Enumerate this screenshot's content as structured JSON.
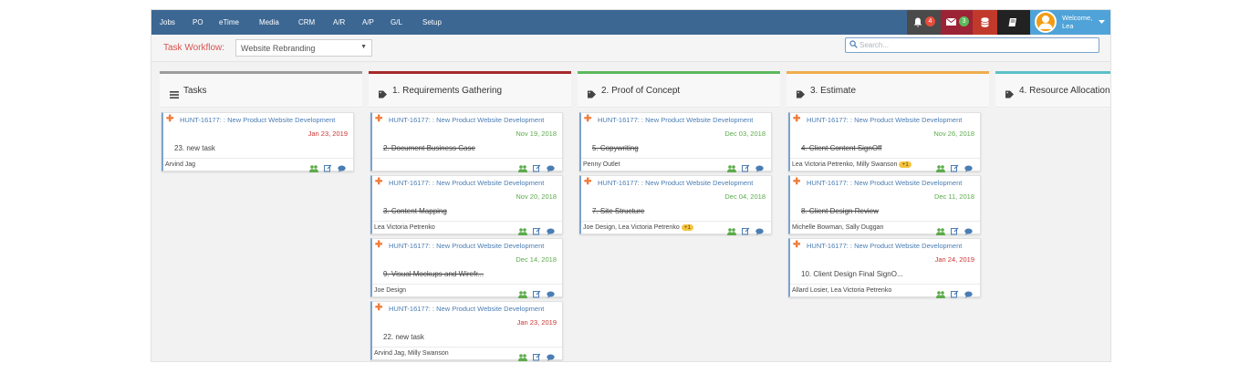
{
  "nav": {
    "items": [
      "Jobs",
      "PO",
      "eTime",
      "Media",
      "CRM",
      "A/R",
      "A/P",
      "G/L",
      "Setup"
    ],
    "notifications_count": "4",
    "messages_count": "3",
    "welcome_line1": "Welcome,",
    "welcome_line2": "Lea",
    "colors": {
      "bar": "#3c6793",
      "notif_bg": "#4a4a4a",
      "msg_bg": "#9b2335",
      "db_bg": "#c0392b",
      "book_bg": "#222222",
      "user_bg": "#4fa3d8"
    }
  },
  "workflow": {
    "label": "Task Workflow:",
    "selected": "Website Rebranding",
    "search_placeholder": "Search..."
  },
  "columns": [
    {
      "title": "Tasks",
      "icon": "list-icon",
      "color": "#9c9c9c",
      "cards": [
        {
          "job": "HUNT-16177: : New Product Website Development",
          "date": "Jan 23, 2019",
          "date_status": "overdue",
          "task": "23. new task",
          "done": false,
          "assignees": "Arvind Jag",
          "extra": ""
        }
      ]
    },
    {
      "title": "1. Requirements Gathering",
      "icon": "tag-icon",
      "color": "#a52a2a",
      "cards": [
        {
          "job": "HUNT-16177: : New Product Website Development",
          "date": "Nov 19, 2018",
          "date_status": "ok",
          "task": "2. Document Business Case",
          "done": true,
          "assignees": "",
          "extra": ""
        },
        {
          "job": "HUNT-16177: : New Product Website Development",
          "date": "Nov 20, 2018",
          "date_status": "ok",
          "task": "3. Content Mapping",
          "done": true,
          "assignees": "Lea Victoria Petrenko",
          "extra": ""
        },
        {
          "job": "HUNT-16177: : New Product Website Development",
          "date": "Dec 14, 2018",
          "date_status": "ok",
          "task": "9. Visual Mockups and Wirefr...",
          "done": true,
          "assignees": "Joe Design",
          "extra": ""
        },
        {
          "job": "HUNT-16177: : New Product Website Development",
          "date": "Jan 23, 2019",
          "date_status": "overdue",
          "task": "22. new task",
          "done": false,
          "assignees": "Arvind Jag, Milly Swanson",
          "extra": ""
        }
      ]
    },
    {
      "title": "2. Proof of Concept",
      "icon": "tag-icon",
      "color": "#5cb85c",
      "cards": [
        {
          "job": "HUNT-16177: : New Product Website Development",
          "date": "Dec 03, 2018",
          "date_status": "ok",
          "task": "5. Copywriting",
          "done": true,
          "assignees": "Penny Outlet",
          "extra": ""
        },
        {
          "job": "HUNT-16177: : New Product Website Development",
          "date": "Dec 04, 2018",
          "date_status": "ok",
          "task": "7. Site Structure",
          "done": true,
          "assignees": "Joe Design, Lea Victoria Petrenko",
          "extra": "+1"
        }
      ]
    },
    {
      "title": "3. Estimate",
      "icon": "tag-icon",
      "color": "#f0ad4e",
      "cards": [
        {
          "job": "HUNT-16177: : New Product Website Development",
          "date": "Nov 26, 2018",
          "date_status": "ok",
          "task": "4. Client Content SignOff",
          "done": true,
          "assignees": "Lea Victoria Petrenko, Milly Swanson",
          "extra": "+1"
        },
        {
          "job": "HUNT-16177: : New Product Website Development",
          "date": "Dec 11, 2018",
          "date_status": "ok",
          "task": "8. Client Design Review",
          "done": true,
          "assignees": "Michelle Bowman, Sally Duggan",
          "extra": ""
        },
        {
          "job": "HUNT-16177: : New Product Website Development",
          "date": "Jan 24, 2019",
          "date_status": "overdue",
          "task": "10. Client Design Final SignO...",
          "done": false,
          "assignees": "Allard Losier, Lea Victoria Petrenko",
          "extra": ""
        }
      ]
    },
    {
      "title": "4. Resource Allocation",
      "icon": "tag-icon",
      "color": "#5bc0c8",
      "cards": []
    }
  ]
}
